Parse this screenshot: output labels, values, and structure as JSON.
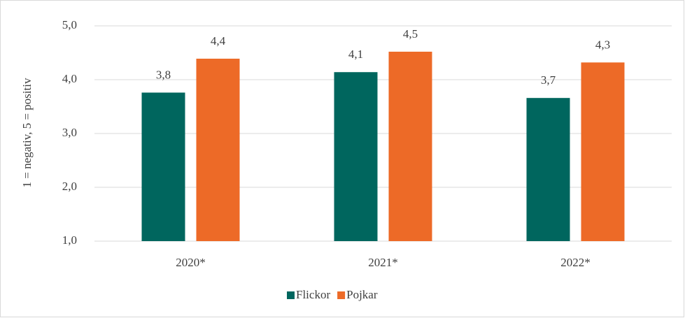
{
  "chart_data": {
    "type": "bar",
    "y_label": "1 = negativ, 5 = positiv",
    "categories": [
      "2020*",
      "2021*",
      "2022*"
    ],
    "series": [
      {
        "name": "Flickor",
        "color": "#00665e",
        "values": [
          3.76,
          4.14,
          3.66
        ],
        "value_labels": [
          "3,8",
          "4,1",
          "3,7"
        ]
      },
      {
        "name": "Pojkar",
        "color": "#ed6a27",
        "values": [
          4.39,
          4.52,
          4.32
        ],
        "value_labels": [
          "4,4",
          "4,5",
          "4,3"
        ]
      }
    ],
    "ylim": [
      1,
      5
    ],
    "yticks": [
      {
        "value": 1,
        "label": "1,0"
      },
      {
        "value": 2,
        "label": "2,0"
      },
      {
        "value": 3,
        "label": "3,0"
      },
      {
        "value": 4,
        "label": "4,0"
      },
      {
        "value": 5,
        "label": "5,0"
      }
    ],
    "grid": true
  }
}
